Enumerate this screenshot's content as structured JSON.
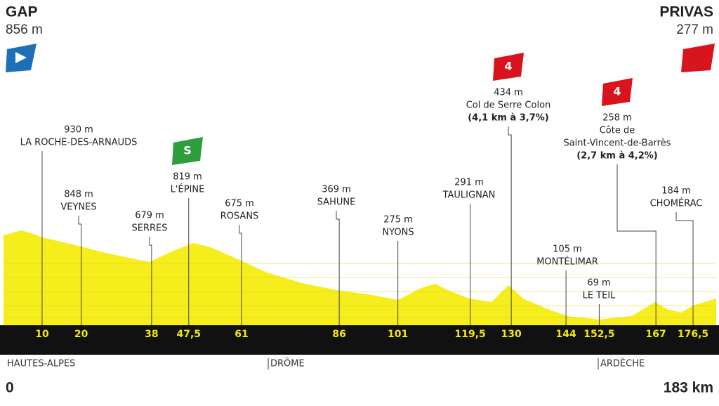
{
  "start": {
    "name": "GAP",
    "altitude": "856 m",
    "km": "0"
  },
  "finish": {
    "name": "PRIVAS",
    "altitude": "277 m",
    "km": "183 km"
  },
  "waypoints": [
    {
      "km": 10,
      "altitude": "930 m",
      "lines": [
        "LA ROCHE-DES-ARNAUDS"
      ]
    },
    {
      "km": 20,
      "altitude": "848 m",
      "lines": [
        "VEYNES"
      ]
    },
    {
      "km": 38,
      "altitude": "679 m",
      "lines": [
        "SERRES"
      ]
    },
    {
      "km": {
        "value": 47.5,
        "label": "47,5"
      },
      "altitude": "819 m",
      "lines": [
        "L'ÉPINE"
      ],
      "icon": "S"
    },
    {
      "km": 61,
      "altitude": "675 m",
      "lines": [
        "ROSANS"
      ]
    },
    {
      "km": 86,
      "altitude": "369 m",
      "lines": [
        "SAHUNE"
      ]
    },
    {
      "km": 101,
      "altitude": "275 m",
      "lines": [
        "NYONS"
      ]
    },
    {
      "km": {
        "value": 119.5,
        "label": "119,5"
      },
      "altitude": "291 m",
      "lines": [
        "TAULIGNAN"
      ]
    },
    {
      "km": 130,
      "altitude": "434 m",
      "lines": [
        "Col de Serre Colon",
        "(4,1 km à 3,7%)"
      ],
      "icon": "4"
    },
    {
      "km": 144,
      "altitude": "105 m",
      "lines": [
        "MONTÉLIMAR"
      ]
    },
    {
      "km": {
        "value": 152.5,
        "label": "152,5"
      },
      "altitude": "69 m",
      "lines": [
        "LE TEIL"
      ]
    },
    {
      "km": 167,
      "altitude": "258 m",
      "lines": [
        "Côte de",
        "Saint-Vincent-de-Barrès",
        "(2,7 km à 4,2%)"
      ],
      "icon": "4"
    },
    {
      "km": {
        "value": 176.5,
        "label": "176,5"
      },
      "altitude": "184 m",
      "lines": [
        "CHOMÉRAC"
      ]
    }
  ],
  "regions": [
    "HAUTES-ALPES",
    "DRÔME",
    "ARDÈCHE"
  ]
}
